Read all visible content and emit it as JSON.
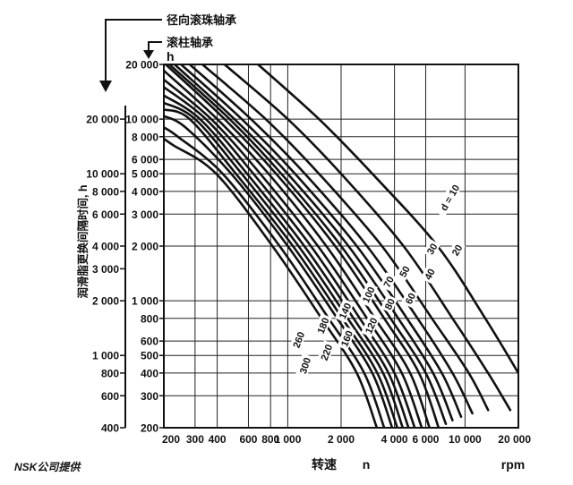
{
  "chart_data": {
    "type": "line",
    "arrow_labels": [
      "径向滚珠轴承",
      "滚柱轴承"
    ],
    "ylabel": "润滑脂更换间隔时间, h",
    "y_unit": "h",
    "xlabel": "转速",
    "x_symbol": "n",
    "x_unit": "rpm",
    "x_scale": "log",
    "y_scale": "log",
    "xlim": [
      200,
      20000
    ],
    "ylim_roller": [
      200,
      20000
    ],
    "ylim_ball": [
      400,
      40000
    ],
    "grid": true,
    "x_ticks": [
      "200",
      "300",
      "400",
      "600",
      "800",
      "1 000",
      "2 000",
      "4 000",
      "6 000",
      "10 000",
      "20 000"
    ],
    "x_tick_values": [
      200,
      300,
      400,
      600,
      800,
      1000,
      2000,
      4000,
      6000,
      10000,
      20000
    ],
    "y_ticks_roller": [
      "20 000",
      "10 000",
      "8 000",
      "6 000",
      "5 000",
      "4 000",
      "3 000",
      "2 000",
      "1 000",
      "800",
      "600",
      "500",
      "400",
      "300",
      "200"
    ],
    "y_tick_values_roller": [
      20000,
      10000,
      8000,
      6000,
      5000,
      4000,
      3000,
      2000,
      1000,
      800,
      600,
      500,
      400,
      300,
      200
    ],
    "y_ticks_ball": [
      "20 000",
      "10 000",
      "8 000",
      "6 000",
      "4 000",
      "3 000",
      "2 000",
      "1 000",
      "800",
      "600",
      "400"
    ],
    "y_tick_values_ball": [
      20000,
      10000,
      8000,
      6000,
      4000,
      3000,
      2000,
      1000,
      800,
      600,
      400
    ],
    "series_note": "d = bore diameter in mm; y values read from the roller bearing scale",
    "series": [
      {
        "name": "d = 10",
        "points": [
          [
            680,
            20000
          ],
          [
            1500,
            10000
          ],
          [
            3000,
            5000
          ],
          [
            7000,
            2000
          ],
          [
            13000,
            800
          ],
          [
            20000,
            400
          ]
        ]
      },
      {
        "name": "20",
        "points": [
          [
            440,
            20000
          ],
          [
            1000,
            10000
          ],
          [
            2000,
            5000
          ],
          [
            4500,
            2000
          ],
          [
            8500,
            800
          ],
          [
            13500,
            400
          ],
          [
            18000,
            250
          ]
        ]
      },
      {
        "name": "30",
        "points": [
          [
            330,
            20000
          ],
          [
            750,
            10000
          ],
          [
            1500,
            5000
          ],
          [
            3400,
            2000
          ],
          [
            6500,
            800
          ],
          [
            10500,
            400
          ],
          [
            13500,
            250
          ]
        ]
      },
      {
        "name": "40",
        "points": [
          [
            280,
            20000
          ],
          [
            620,
            10000
          ],
          [
            1250,
            5000
          ],
          [
            2800,
            2000
          ],
          [
            5400,
            800
          ],
          [
            8500,
            400
          ],
          [
            11000,
            240
          ]
        ]
      },
      {
        "name": "50",
        "points": [
          [
            250,
            20000
          ],
          [
            550,
            10000
          ],
          [
            1100,
            5000
          ],
          [
            2450,
            2000
          ],
          [
            4700,
            800
          ],
          [
            7400,
            400
          ],
          [
            9500,
            230
          ]
        ]
      },
      {
        "name": "60",
        "points": [
          [
            230,
            20000
          ],
          [
            500,
            10000
          ],
          [
            1000,
            5000
          ],
          [
            2200,
            2000
          ],
          [
            4200,
            800
          ],
          [
            6600,
            400
          ],
          [
            8500,
            220
          ]
        ]
      },
      {
        "name": "70",
        "points": [
          [
            215,
            20000
          ],
          [
            470,
            10000
          ],
          [
            920,
            5000
          ],
          [
            2000,
            2000
          ],
          [
            3800,
            800
          ],
          [
            6000,
            400
          ],
          [
            7800,
            210
          ]
        ]
      },
      {
        "name": "80",
        "points": [
          [
            205,
            20000
          ],
          [
            440,
            10000
          ],
          [
            860,
            5000
          ],
          [
            1850,
            2000
          ],
          [
            3500,
            800
          ],
          [
            5500,
            400
          ],
          [
            7100,
            200
          ]
        ]
      },
      {
        "name": "100",
        "points": [
          [
            200,
            18500
          ],
          [
            400,
            10000
          ],
          [
            780,
            5000
          ],
          [
            1650,
            2000
          ],
          [
            3100,
            800
          ],
          [
            4900,
            400
          ],
          [
            6300,
            200
          ]
        ]
      },
      {
        "name": "120",
        "points": [
          [
            200,
            16500
          ],
          [
            370,
            10000
          ],
          [
            700,
            5000
          ],
          [
            1480,
            2000
          ],
          [
            2800,
            800
          ],
          [
            4400,
            400
          ],
          [
            5700,
            200
          ]
        ]
      },
      {
        "name": "140",
        "points": [
          [
            200,
            15000
          ],
          [
            345,
            10000
          ],
          [
            640,
            5000
          ],
          [
            1350,
            2000
          ],
          [
            2550,
            800
          ],
          [
            4000,
            400
          ],
          [
            5200,
            200
          ]
        ]
      },
      {
        "name": "160",
        "points": [
          [
            200,
            13500
          ],
          [
            320,
            10000
          ],
          [
            590,
            5000
          ],
          [
            1240,
            2000
          ],
          [
            2350,
            800
          ],
          [
            3700,
            400
          ],
          [
            4800,
            200
          ]
        ]
      },
      {
        "name": "180",
        "points": [
          [
            200,
            12300
          ],
          [
            300,
            10000
          ],
          [
            550,
            5000
          ],
          [
            1150,
            2000
          ],
          [
            2180,
            800
          ],
          [
            3450,
            400
          ],
          [
            4450,
            200
          ]
        ]
      },
      {
        "name": "200",
        "points": [
          [
            200,
            11300
          ],
          [
            280,
            10000
          ],
          [
            510,
            5000
          ],
          [
            1070,
            2000
          ],
          [
            2030,
            800
          ],
          [
            3200,
            400
          ],
          [
            4150,
            200
          ]
        ]
      },
      {
        "name": "220",
        "points": [
          [
            200,
            10400
          ],
          [
            265,
            9000
          ],
          [
            480,
            5000
          ],
          [
            1000,
            2000
          ],
          [
            1900,
            800
          ],
          [
            3000,
            400
          ],
          [
            3880,
            200
          ]
        ]
      },
      {
        "name": "260",
        "points": [
          [
            200,
            9000
          ],
          [
            240,
            8000
          ],
          [
            430,
            5000
          ],
          [
            900,
            2000
          ],
          [
            1700,
            800
          ],
          [
            2700,
            400
          ],
          [
            3500,
            200
          ]
        ]
      },
      {
        "name": "300",
        "points": [
          [
            200,
            7800
          ],
          [
            225,
            7200
          ],
          [
            395,
            5000
          ],
          [
            820,
            2000
          ],
          [
            1550,
            800
          ],
          [
            2450,
            400
          ],
          [
            3180,
            200
          ]
        ]
      }
    ],
    "curve_labels": [
      {
        "text": "d = 10",
        "x": 8200,
        "y": 3700,
        "rot": -60
      },
      {
        "text": "20",
        "x": 9000,
        "y": 1900,
        "rot": -60
      },
      {
        "text": "30",
        "x": 6500,
        "y": 1930,
        "rot": -60
      },
      {
        "text": "40",
        "x": 6300,
        "y": 1400,
        "rot": -62
      },
      {
        "text": "50",
        "x": 4550,
        "y": 1450,
        "rot": -62
      },
      {
        "text": "60",
        "x": 4900,
        "y": 1030,
        "rot": -64
      },
      {
        "text": "70",
        "x": 3700,
        "y": 1270,
        "rot": -64
      },
      {
        "text": "80",
        "x": 3750,
        "y": 960,
        "rot": -65
      },
      {
        "text": "100",
        "x": 2850,
        "y": 1080,
        "rot": -65
      },
      {
        "text": "120",
        "x": 2950,
        "y": 730,
        "rot": -66
      },
      {
        "text": "140",
        "x": 2100,
        "y": 880,
        "rot": -66
      },
      {
        "text": "160",
        "x": 2150,
        "y": 620,
        "rot": -68
      },
      {
        "text": "180",
        "x": 1580,
        "y": 730,
        "rot": -68
      },
      {
        "text": "220",
        "x": 1650,
        "y": 520,
        "rot": -70
      },
      {
        "text": "260",
        "x": 1150,
        "y": 610,
        "rot": -70
      },
      {
        "text": "300",
        "x": 1250,
        "y": 440,
        "rot": -72
      }
    ]
  },
  "footer": {
    "provider": "NSK公司提供"
  },
  "colors": {
    "ink": "#111111",
    "background": "#ffffff"
  }
}
